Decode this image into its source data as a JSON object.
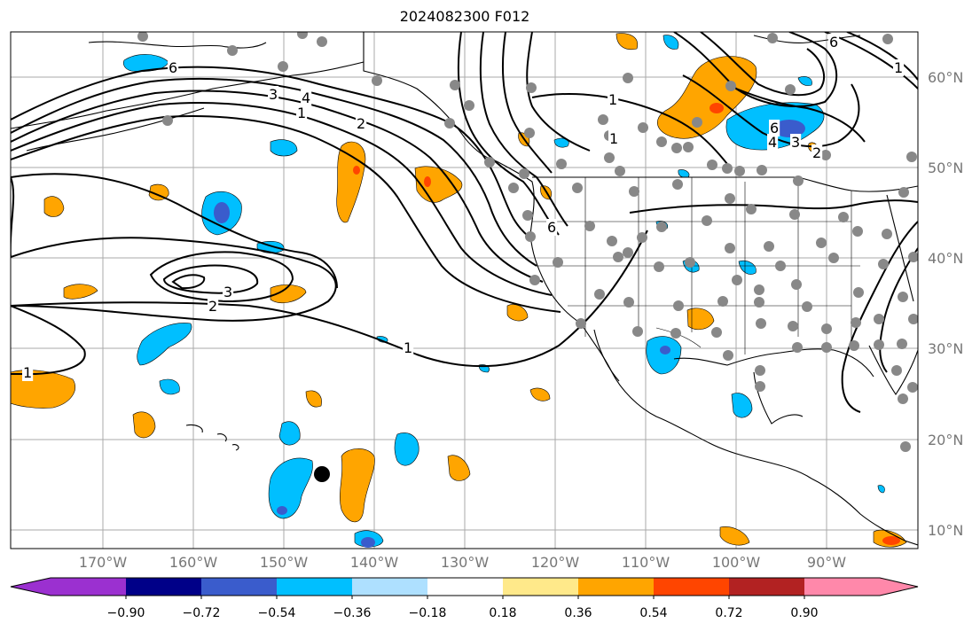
{
  "title": "2024082300 F012",
  "lat_labels": [
    "60°N",
    "50°N",
    "40°N",
    "30°N",
    "20°N",
    "10°N"
  ],
  "lon_labels": [
    "170°W",
    "160°W",
    "150°W",
    "140°W",
    "130°W",
    "120°W",
    "110°W",
    "100°W",
    "90°W"
  ],
  "colorbar": {
    "ticks": [
      "−0.90",
      "−0.72",
      "−0.54",
      "−0.36",
      "−0.18",
      "0.18",
      "0.36",
      "0.54",
      "0.72",
      "0.90"
    ],
    "colors": [
      "#9b30d0",
      "#000088",
      "#3a5ccc",
      "#00bfff",
      "#aee0ff",
      "#ffffff",
      "#ffe98a",
      "#ffa500",
      "#ff4500",
      "#b22222",
      "#ff88aa"
    ]
  },
  "contour_labels": [
    "6",
    "3",
    "4",
    "1",
    "2",
    "1",
    "1",
    "6",
    "4",
    "3",
    "2",
    "6",
    "1",
    "3",
    "2",
    "1",
    "1",
    "6"
  ],
  "colors": {
    "land_outline": "#000000",
    "grid": "#aaaaaa",
    "station_dots": "#888888",
    "marker": "#000000",
    "positive_fill": "#ffa500",
    "negative_fill": "#00bfff"
  }
}
